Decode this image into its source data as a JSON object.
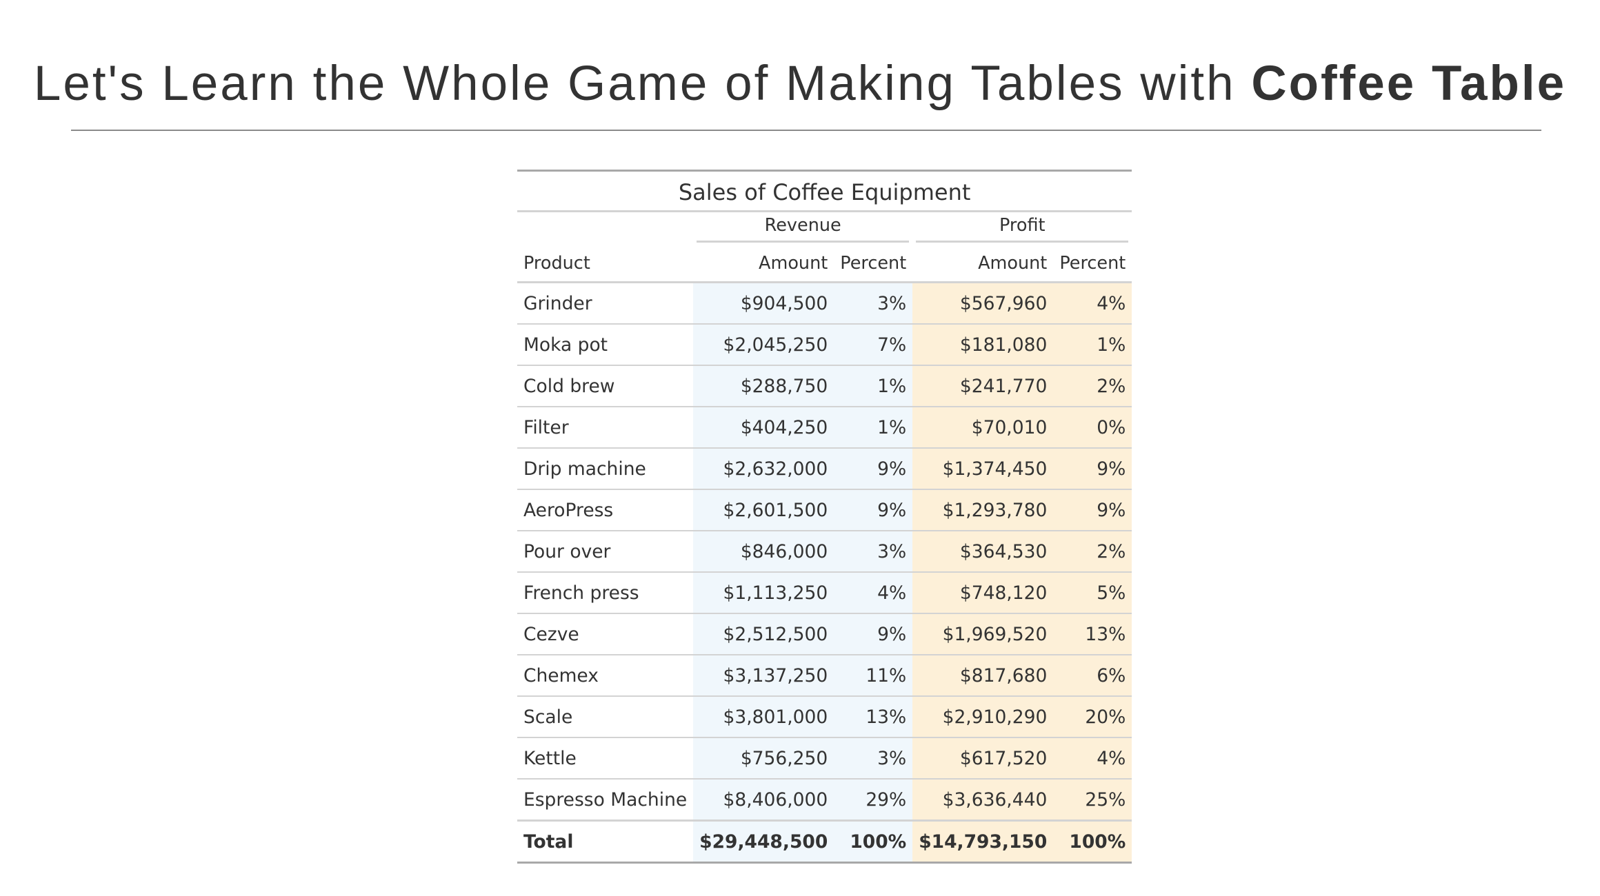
{
  "slide": {
    "title_prefix": "Let's Learn the Whole Game of Making Tables with ",
    "title_bold": "Coffee Table"
  },
  "table": {
    "heading": "Sales of Coffee Equipment",
    "spanners": {
      "revenue": "Revenue",
      "profit": "Profit"
    },
    "columns": {
      "product": "Product",
      "revenue_amount": "Amount",
      "revenue_percent": "Percent",
      "profit_amount": "Amount",
      "profit_percent": "Percent"
    },
    "rows": [
      {
        "product": "Grinder",
        "revenue_amount": "$904,500",
        "revenue_percent": "3%",
        "profit_amount": "$567,960",
        "profit_percent": "4%"
      },
      {
        "product": "Moka pot",
        "revenue_amount": "$2,045,250",
        "revenue_percent": "7%",
        "profit_amount": "$181,080",
        "profit_percent": "1%"
      },
      {
        "product": "Cold brew",
        "revenue_amount": "$288,750",
        "revenue_percent": "1%",
        "profit_amount": "$241,770",
        "profit_percent": "2%"
      },
      {
        "product": "Filter",
        "revenue_amount": "$404,250",
        "revenue_percent": "1%",
        "profit_amount": "$70,010",
        "profit_percent": "0%"
      },
      {
        "product": "Drip machine",
        "revenue_amount": "$2,632,000",
        "revenue_percent": "9%",
        "profit_amount": "$1,374,450",
        "profit_percent": "9%"
      },
      {
        "product": "AeroPress",
        "revenue_amount": "$2,601,500",
        "revenue_percent": "9%",
        "profit_amount": "$1,293,780",
        "profit_percent": "9%"
      },
      {
        "product": "Pour over",
        "revenue_amount": "$846,000",
        "revenue_percent": "3%",
        "profit_amount": "$364,530",
        "profit_percent": "2%"
      },
      {
        "product": "French press",
        "revenue_amount": "$1,113,250",
        "revenue_percent": "4%",
        "profit_amount": "$748,120",
        "profit_percent": "5%"
      },
      {
        "product": "Cezve",
        "revenue_amount": "$2,512,500",
        "revenue_percent": "9%",
        "profit_amount": "$1,969,520",
        "profit_percent": "13%"
      },
      {
        "product": "Chemex",
        "revenue_amount": "$3,137,250",
        "revenue_percent": "11%",
        "profit_amount": "$817,680",
        "profit_percent": "6%"
      },
      {
        "product": "Scale",
        "revenue_amount": "$3,801,000",
        "revenue_percent": "13%",
        "profit_amount": "$2,910,290",
        "profit_percent": "20%"
      },
      {
        "product": "Kettle",
        "revenue_amount": "$756,250",
        "revenue_percent": "3%",
        "profit_amount": "$617,520",
        "profit_percent": "4%"
      },
      {
        "product": "Espresso Machine",
        "revenue_amount": "$8,406,000",
        "revenue_percent": "29%",
        "profit_amount": "$3,636,440",
        "profit_percent": "25%"
      }
    ],
    "total": {
      "product": "Total",
      "revenue_amount": "$29,448,500",
      "revenue_percent": "100%",
      "profit_amount": "$14,793,150",
      "profit_percent": "100%"
    },
    "colors": {
      "revenue_fill": "#f0f7fc",
      "profit_fill": "#fdf0d8",
      "text": "#333333",
      "rule": "#d3d3d3"
    }
  }
}
